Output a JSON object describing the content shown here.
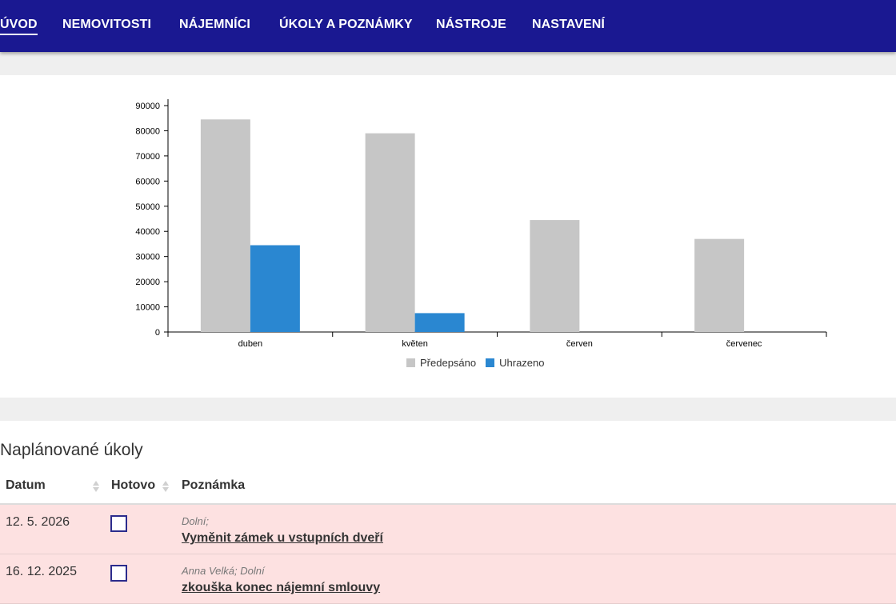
{
  "nav": {
    "items": [
      {
        "label": "ÚVOD",
        "active": true
      },
      {
        "label": "NEMOVITOSTI"
      },
      {
        "label": "NÁJEMNÍCI"
      },
      {
        "label": "ÚKOLY A POZNÁMKY"
      },
      {
        "label": "NÁSTROJE"
      },
      {
        "label": "NASTAVENÍ"
      }
    ]
  },
  "colors": {
    "nav_bg": "#1a1891",
    "predepsano": "#c6c6c6",
    "uhrazeno": "#2a87d1",
    "row_highlight": "#fde1e1"
  },
  "chart_data": {
    "type": "bar",
    "categories": [
      "duben",
      "květen",
      "červen",
      "červenec"
    ],
    "series": [
      {
        "name": "Předepsáno",
        "values": [
          84500,
          79000,
          44500,
          37000
        ]
      },
      {
        "name": "Uhrazeno",
        "values": [
          34500,
          7500,
          0,
          0
        ]
      }
    ],
    "ylim": [
      0,
      90000
    ],
    "yticks": [
      "0",
      "10000",
      "20000",
      "30000",
      "40000",
      "50000",
      "60000",
      "70000",
      "80000",
      "90000"
    ],
    "grid": false,
    "legend_position": "bottom"
  },
  "legend": {
    "items": [
      {
        "label": "Předepsáno"
      },
      {
        "label": "Uhrazeno"
      }
    ]
  },
  "tasks": {
    "title": "Naplánované úkoly",
    "columns": {
      "date": "Datum",
      "done": "Hotovo",
      "note": "Poznámka"
    },
    "rows": [
      {
        "date": "12. 5. 2026",
        "done": false,
        "who": "Dolní;",
        "task": "Vyměnit zámek u vstupních dveří"
      },
      {
        "date": "16. 12. 2025",
        "done": false,
        "who": "Anna Velká; Dolní",
        "task": "zkouška konec nájemní smlouvy"
      }
    ]
  }
}
